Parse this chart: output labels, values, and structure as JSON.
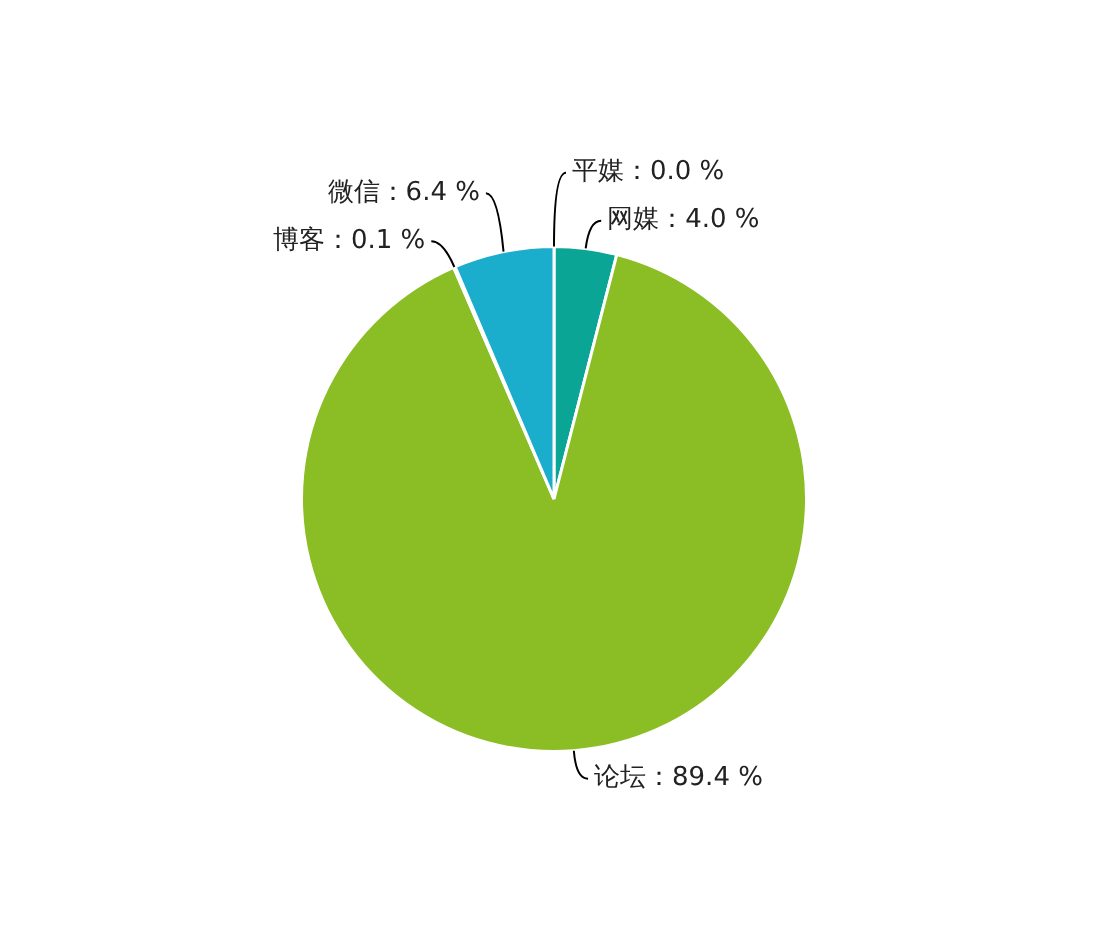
{
  "chart_data": {
    "type": "pie",
    "categories": [
      "平媒",
      "网媒",
      "论坛",
      "博客",
      "微信"
    ],
    "values": [
      0.0,
      4.0,
      89.4,
      0.1,
      6.4
    ],
    "colors": [
      "#e4a21a",
      "#0aa595",
      "#8bbd24",
      "#2f7ed8",
      "#1badcc"
    ],
    "value_labels": [
      "：0.0 %",
      "：4.0 %",
      "：89.4 %",
      "：0.1 %",
      "：6.4 %"
    ],
    "legend": false
  }
}
